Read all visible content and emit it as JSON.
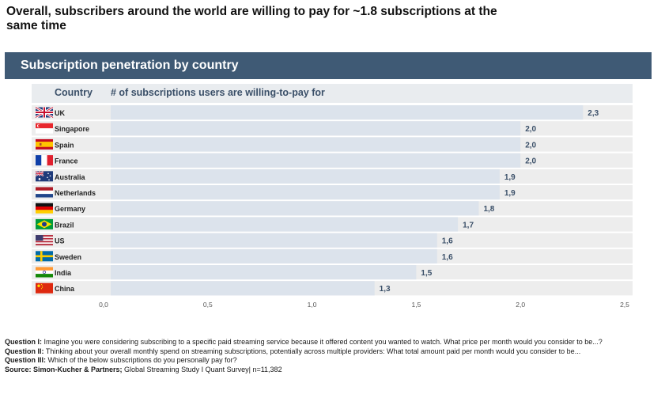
{
  "headline": "Overall, subscribers around the world are willing to pay for ~1.8 subscriptions at the same time",
  "banner_title": "Subscription penetration by country",
  "table_header": {
    "country": "Country",
    "metric": "#  of subscriptions users are willing-to-pay for"
  },
  "colors": {
    "banner": "#3f5a75",
    "bar": "#dce3ec",
    "row_band": "#ededed",
    "label_text": "#3a4f68"
  },
  "chart_data": {
    "type": "bar",
    "orientation": "horizontal",
    "categories": [
      "UK",
      "Singapore",
      "Spain",
      "France",
      "Australia",
      "Netherlands",
      "Germany",
      "Brazil",
      "US",
      "Sweden",
      "India",
      "China"
    ],
    "flag_icons": [
      "uk-flag-icon",
      "singapore-flag-icon",
      "spain-flag-icon",
      "france-flag-icon",
      "australia-flag-icon",
      "netherlands-flag-icon",
      "germany-flag-icon",
      "brazil-flag-icon",
      "us-flag-icon",
      "sweden-flag-icon",
      "india-flag-icon",
      "china-flag-icon"
    ],
    "values": [
      2.3,
      2.0,
      2.0,
      2.0,
      1.9,
      1.9,
      1.8,
      1.7,
      1.6,
      1.6,
      1.5,
      1.3
    ],
    "value_labels": [
      "2,3",
      "2,0",
      "2,0",
      "2,0",
      "1,9",
      "1,9",
      "1,8",
      "1,7",
      "1,6",
      "1,6",
      "1,5",
      "1,3"
    ],
    "xlim": [
      0,
      2.5
    ],
    "xticks": [
      "0,0",
      "0,5",
      "1,0",
      "1,5",
      "2,0",
      "2,5"
    ],
    "grid": false
  },
  "notes": {
    "q1_label": "Question I:",
    "q1_text": " Imagine you were considering subscribing to a specific paid streaming service because it offered content you wanted to watch. What price per month would you consider to be...?",
    "q2_label": "Question II:",
    "q2_text": " Thinking about your overall monthly spend on streaming subscriptions, potentially across multiple providers: What total amount paid per month would you consider to be...",
    "q3_label": "Question III:",
    "q3_text": " Which of the below subscriptions do you personally pay for?",
    "source_label": "Source: Simon-Kucher & Partners;",
    "source_text": " Global Streaming Study I Quant Survey| n=11,382"
  }
}
